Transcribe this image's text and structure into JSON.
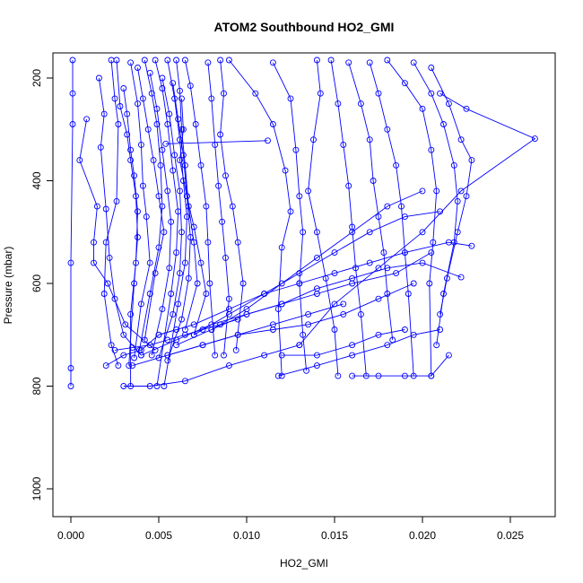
{
  "chart_data": {
    "type": "scatter",
    "title": "ATOM2 Southbound HO2_GMI",
    "xlabel": "HO2_GMI",
    "ylabel": "Pressure (mbar)",
    "xlim": [
      0.0,
      0.0275
    ],
    "ylim": [
      1050,
      160
    ],
    "y_reversed": true,
    "x_ticks": [
      "0.000",
      "0.005",
      "0.010",
      "0.015",
      "0.020",
      "0.025"
    ],
    "y_ticks": [
      "200",
      "400",
      "600",
      "800",
      "1000"
    ],
    "grid": false,
    "legend": "none",
    "colors": {
      "series": "#0000ff",
      "axis": "#000000"
    },
    "series": [
      {
        "x": [
          0.0001,
          0.0001,
          0.0001,
          0.0,
          0.0,
          0.0
        ],
        "y": [
          165,
          230,
          290,
          560,
          765,
          800
        ]
      },
      {
        "x": [
          0.0009,
          0.0005,
          0.0015,
          0.0013,
          0.0013,
          0.0021,
          0.0031,
          0.0048
        ],
        "y": [
          280,
          360,
          450,
          520,
          560,
          600,
          680,
          730
        ]
      },
      {
        "x": [
          0.0016,
          0.0019,
          0.0017,
          0.002,
          0.0022,
          0.0025,
          0.003,
          0.004
        ],
        "y": [
          200,
          270,
          335,
          455,
          550,
          630,
          700,
          740
        ]
      },
      {
        "x": [
          0.0023,
          0.0025,
          0.0027,
          0.0026,
          0.002,
          0.0019,
          0.0023,
          0.0027
        ],
        "y": [
          165,
          240,
          290,
          440,
          520,
          620,
          720,
          760
        ]
      },
      {
        "x": [
          0.0026,
          0.0028,
          0.0032,
          0.0034,
          0.0037,
          0.0038,
          0.0036,
          0.0033
        ],
        "y": [
          165,
          255,
          310,
          360,
          430,
          510,
          600,
          760
        ]
      },
      {
        "x": [
          0.003,
          0.0032,
          0.0034,
          0.0036,
          0.0038,
          0.0037,
          0.0034,
          0.0034
        ],
        "y": [
          220,
          270,
          340,
          390,
          460,
          560,
          660,
          800
        ]
      },
      {
        "x": [
          0.0034,
          0.0038,
          0.004,
          0.0041,
          0.0043,
          0.0045,
          0.004,
          0.0036
        ],
        "y": [
          170,
          250,
          330,
          410,
          470,
          560,
          640,
          745
        ]
      },
      {
        "x": [
          0.0038,
          0.0041,
          0.0044,
          0.0047,
          0.005,
          0.0053,
          0.0048,
          0.0042
        ],
        "y": [
          180,
          240,
          300,
          360,
          430,
          500,
          580,
          710
        ]
      },
      {
        "x": [
          0.0042,
          0.0046,
          0.0049,
          0.0051,
          0.0052,
          0.005,
          0.0045,
          0.0039
        ],
        "y": [
          165,
          230,
          290,
          370,
          450,
          530,
          620,
          730
        ]
      },
      {
        "x": [
          0.0045,
          0.0049,
          0.0052,
          0.0055,
          0.0057,
          0.0056,
          0.0052,
          0.0046
        ],
        "y": [
          190,
          260,
          340,
          420,
          480,
          570,
          650,
          740
        ]
      },
      {
        "x": [
          0.0048,
          0.0052,
          0.0055,
          0.0058,
          0.0061,
          0.006,
          0.0057,
          0.0049
        ],
        "y": [
          165,
          220,
          290,
          380,
          460,
          540,
          620,
          800
        ]
      },
      {
        "x": [
          0.0052,
          0.0056,
          0.0059,
          0.0062,
          0.0063,
          0.0062,
          0.0058,
          0.005
        ],
        "y": [
          200,
          270,
          350,
          420,
          500,
          580,
          660,
          745
        ]
      },
      {
        "x": [
          0.0055,
          0.0059,
          0.0062,
          0.0064,
          0.0066,
          0.0065,
          0.0061,
          0.0053
        ],
        "y": [
          165,
          240,
          320,
          400,
          470,
          560,
          640,
          800
        ]
      },
      {
        "x": [
          0.0058,
          0.0061,
          0.0064,
          0.0066,
          0.0068,
          0.0067,
          0.0063,
          0.0055
        ],
        "y": [
          210,
          280,
          350,
          430,
          510,
          590,
          670,
          750
        ]
      },
      {
        "x": [
          0.006,
          0.0062,
          0.0063,
          0.0065,
          0.0067,
          0.007,
          0.0072,
          0.0065
        ],
        "y": [
          165,
          225,
          300,
          370,
          450,
          520,
          600,
          690
        ]
      },
      {
        "x": [
          0.0063,
          0.0064,
          0.0062,
          0.0066,
          0.007,
          0.0074,
          0.0077,
          0.007
        ],
        "y": [
          240,
          300,
          360,
          430,
          490,
          560,
          620,
          700
        ]
      },
      {
        "x": [
          0.0065,
          0.0068,
          0.0071,
          0.0074,
          0.0077,
          0.0078,
          0.0079,
          0.0082
        ],
        "y": [
          165,
          215,
          290,
          370,
          450,
          520,
          600,
          740
        ]
      },
      {
        "x": [
          0.0078,
          0.008,
          0.0082,
          0.0084,
          0.0086,
          0.0088,
          0.009,
          0.0087
        ],
        "y": [
          170,
          240,
          330,
          410,
          480,
          550,
          630,
          740
        ]
      },
      {
        "x": [
          0.0085,
          0.0087,
          0.0085,
          0.0088,
          0.0092,
          0.0095,
          0.0098,
          0.0094
        ],
        "y": [
          165,
          230,
          310,
          390,
          450,
          520,
          600,
          730
        ]
      },
      {
        "x": [
          0.0054,
          0.0112
        ],
        "y": [
          328,
          322
        ]
      },
      {
        "x": [
          0.009,
          0.0105,
          0.0115,
          0.0122,
          0.0125,
          0.012,
          0.0118,
          0.012
        ],
        "y": [
          165,
          230,
          290,
          380,
          460,
          530,
          650,
          780
        ]
      },
      {
        "x": [
          0.0115,
          0.0125,
          0.0128,
          0.013,
          0.0132,
          0.013,
          0.0132,
          0.0134
        ],
        "y": [
          170,
          240,
          340,
          430,
          500,
          600,
          700,
          770
        ]
      },
      {
        "x": [
          0.014,
          0.0142,
          0.0138,
          0.0135,
          0.014,
          0.0145,
          0.015,
          0.0152
        ],
        "y": [
          165,
          230,
          320,
          420,
          500,
          590,
          690,
          780
        ]
      },
      {
        "x": [
          0.0148,
          0.0152,
          0.0155,
          0.0158,
          0.016,
          0.0162,
          0.0165,
          0.0168
        ],
        "y": [
          165,
          250,
          330,
          410,
          490,
          570,
          660,
          780
        ]
      },
      {
        "x": [
          0.0158,
          0.0165,
          0.017,
          0.0172,
          0.0175,
          0.0178,
          0.018,
          0.0183
        ],
        "y": [
          170,
          250,
          320,
          400,
          470,
          540,
          620,
          710
        ]
      },
      {
        "x": [
          0.017,
          0.0175,
          0.018,
          0.0185,
          0.0188,
          0.019,
          0.0192,
          0.0195
        ],
        "y": [
          170,
          230,
          300,
          370,
          450,
          540,
          620,
          780
        ]
      },
      {
        "x": [
          0.018,
          0.019,
          0.02,
          0.0205,
          0.0208,
          0.0206,
          0.0204,
          0.0205
        ],
        "y": [
          165,
          210,
          260,
          340,
          420,
          520,
          600,
          780
        ]
      },
      {
        "x": [
          0.0195,
          0.0205,
          0.0212,
          0.0218,
          0.022,
          0.0218,
          0.0212,
          0.0208
        ],
        "y": [
          170,
          230,
          290,
          370,
          440,
          520,
          620,
          720
        ]
      },
      {
        "x": [
          0.0205,
          0.0215,
          0.0222,
          0.0228,
          0.0225,
          0.022,
          0.0214,
          0.021
        ],
        "y": [
          180,
          250,
          320,
          360,
          430,
          500,
          590,
          660
        ]
      },
      {
        "x": [
          0.021,
          0.0225,
          0.0264,
          0.0222,
          0.02,
          0.0175,
          0.015,
          0.013
        ],
        "y": [
          230,
          260,
          318,
          420,
          500,
          570,
          640,
          720
        ]
      },
      {
        "x": [
          0.005,
          0.007,
          0.009,
          0.011,
          0.013,
          0.015,
          0.017,
          0.019,
          0.0215,
          0.0228
        ],
        "y": [
          700,
          680,
          650,
          620,
          600,
          580,
          560,
          540,
          520,
          527
        ]
      },
      {
        "x": [
          0.006,
          0.008,
          0.01,
          0.012,
          0.014,
          0.016,
          0.018,
          0.02,
          0.0222
        ],
        "y": [
          720,
          690,
          660,
          640,
          610,
          590,
          570,
          560,
          588
        ]
      },
      {
        "x": [
          0.004,
          0.006,
          0.008,
          0.01,
          0.012,
          0.014,
          0.016,
          0.0185,
          0.0205
        ],
        "y": [
          740,
          710,
          680,
          660,
          640,
          620,
          600,
          580,
          540
        ]
      },
      {
        "x": [
          0.007,
          0.009,
          0.011,
          0.013,
          0.015,
          0.017,
          0.019,
          0.021
        ],
        "y": [
          700,
          660,
          620,
          580,
          540,
          500,
          470,
          460
        ]
      },
      {
        "x": [
          0.008,
          0.01,
          0.012,
          0.014,
          0.016,
          0.018,
          0.02
        ],
        "y": [
          690,
          650,
          600,
          550,
          500,
          450,
          420
        ]
      },
      {
        "x": [
          0.0055,
          0.0075,
          0.0095,
          0.0115,
          0.0135,
          0.0155,
          0.0175,
          0.0195
        ],
        "y": [
          740,
          720,
          700,
          690,
          680,
          660,
          630,
          600
        ]
      },
      {
        "x": [
          0.0035,
          0.0055,
          0.0075,
          0.0095,
          0.0115,
          0.0135,
          0.0155
        ],
        "y": [
          760,
          740,
          720,
          700,
          680,
          660,
          640
        ]
      },
      {
        "x": [
          0.003,
          0.0045,
          0.0065,
          0.009,
          0.011,
          0.013
        ],
        "y": [
          800,
          800,
          790,
          760,
          740,
          720
        ]
      },
      {
        "x": [
          0.0118,
          0.014,
          0.016,
          0.018,
          0.0195,
          0.021
        ],
        "y": [
          780,
          760,
          740,
          720,
          700,
          690
        ]
      },
      {
        "x": [
          0.016,
          0.0175,
          0.019,
          0.0205,
          0.0215
        ],
        "y": [
          780,
          780,
          780,
          780,
          740
        ]
      },
      {
        "x": [
          0.002,
          0.003,
          0.004,
          0.005,
          0.006
        ],
        "y": [
          760,
          740,
          730,
          700,
          690
        ]
      },
      {
        "x": [
          0.0025,
          0.0035,
          0.0045,
          0.0055,
          0.0065,
          0.0075,
          0.0085,
          0.0095
        ],
        "y": [
          730,
          725,
          720,
          710,
          700,
          690,
          680,
          670
        ]
      },
      {
        "x": [
          0.012,
          0.014,
          0.016,
          0.0175,
          0.019
        ],
        "y": [
          740,
          740,
          720,
          700,
          690
        ]
      }
    ]
  }
}
